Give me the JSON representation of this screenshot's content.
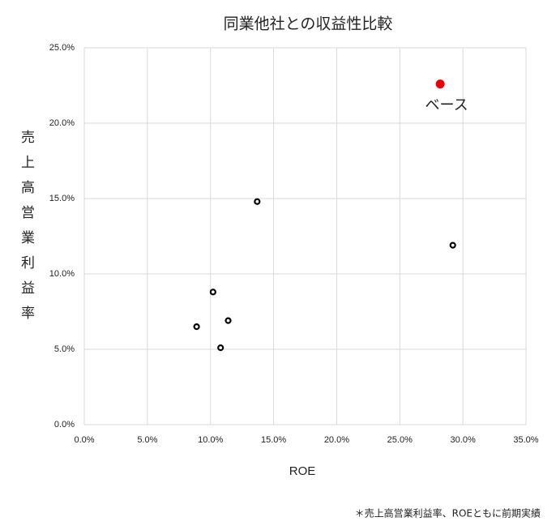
{
  "chart_data": {
    "type": "scatter",
    "title": "同業他社との収益性比較",
    "xlabel": "ROE",
    "ylabel": "売上高営業利益率",
    "annotation": "ベース",
    "footnote": "＊売上高営業利益率、ROEともに前期実績",
    "series": [
      {
        "color": "#000000",
        "x": [
          13.7,
          29.2,
          10.2,
          8.9,
          11.4,
          10.8
        ],
        "values": [
          14.8,
          11.9,
          8.8,
          6.5,
          6.9,
          5.1
        ]
      },
      {
        "color": "#ee0000",
        "x": [
          28.2
        ],
        "values": [
          22.6
        ]
      }
    ],
    "xlim": [
      0,
      35
    ],
    "ylim": [
      0,
      25
    ],
    "xticks": [
      {
        "value": 0,
        "label": "0.0%"
      },
      {
        "value": 5,
        "label": "5.0%"
      },
      {
        "value": 10,
        "label": "10.0%"
      },
      {
        "value": 15,
        "label": "15.0%"
      },
      {
        "value": 20,
        "label": "20.0%"
      },
      {
        "value": 25,
        "label": "25.0%"
      },
      {
        "value": 30,
        "label": "30.0%"
      },
      {
        "value": 35,
        "label": "35.0%"
      }
    ],
    "yticks": [
      {
        "value": 0,
        "label": "0.0%"
      },
      {
        "value": 5,
        "label": "5.0%"
      },
      {
        "value": 10,
        "label": "10.0%"
      },
      {
        "value": 15,
        "label": "15.0%"
      },
      {
        "value": 20,
        "label": "20.0%"
      },
      {
        "value": 25,
        "label": "25.0%"
      }
    ],
    "grid": true
  }
}
